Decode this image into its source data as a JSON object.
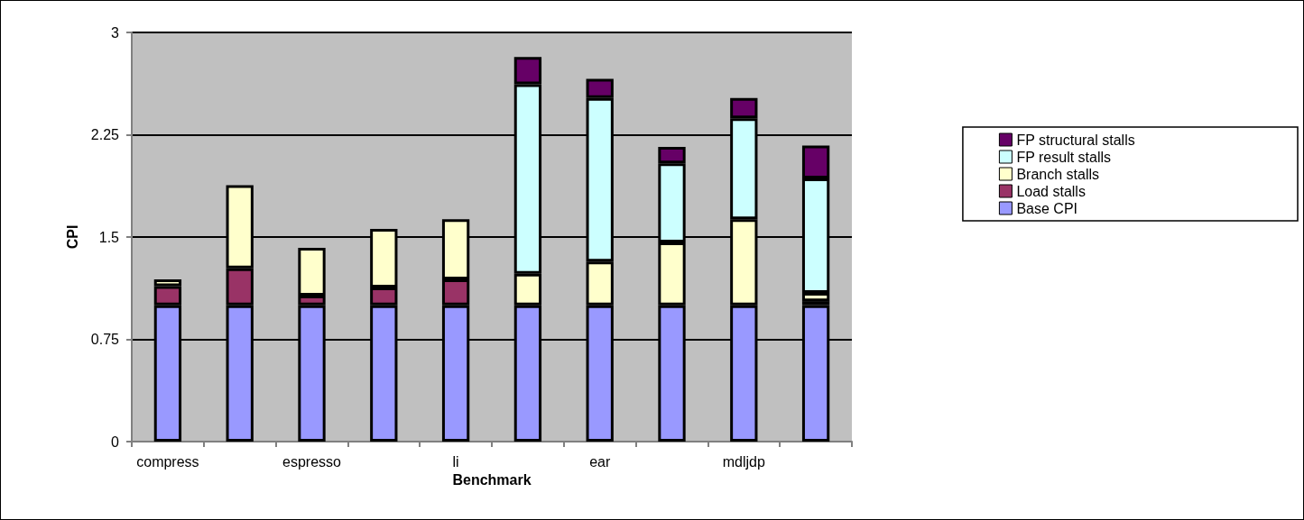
{
  "chart_data": {
    "type": "bar",
    "stacked": true,
    "xlabel": "Benchmark",
    "ylabel": "CPI",
    "categories": [
      "compress",
      null,
      "espresso",
      null,
      "li",
      null,
      "ear",
      null,
      "mdljdp",
      null
    ],
    "series": [
      {
        "name": "Base CPI",
        "color": "#9999ff",
        "values": [
          1,
          1,
          1,
          1,
          1,
          1,
          1,
          1,
          1,
          1
        ]
      },
      {
        "name": "Load stalls",
        "color": "#993366",
        "values": [
          0.14,
          0.27,
          0.07,
          0.13,
          0.19,
          0,
          0,
          0,
          0,
          0.03
        ]
      },
      {
        "name": "Branch stalls",
        "color": "#ffffcc",
        "values": [
          0.05,
          0.61,
          0.35,
          0.43,
          0.44,
          0.23,
          0.32,
          0.46,
          0.63,
          0.06
        ]
      },
      {
        "name": "FP result stalls",
        "color": "#ccffff",
        "values": [
          0,
          0,
          0,
          0,
          0,
          1.39,
          1.2,
          0.58,
          0.74,
          0.84
        ]
      },
      {
        "name": "FP structural stalls",
        "color": "#660066",
        "values": [
          0,
          0,
          0,
          0,
          0,
          0.2,
          0.14,
          0.12,
          0.15,
          0.24
        ]
      }
    ],
    "ylim": [
      0,
      3
    ],
    "yticks": [
      0,
      0.75,
      1.5,
      2.25,
      3
    ],
    "grid": "y",
    "legend": "right"
  }
}
